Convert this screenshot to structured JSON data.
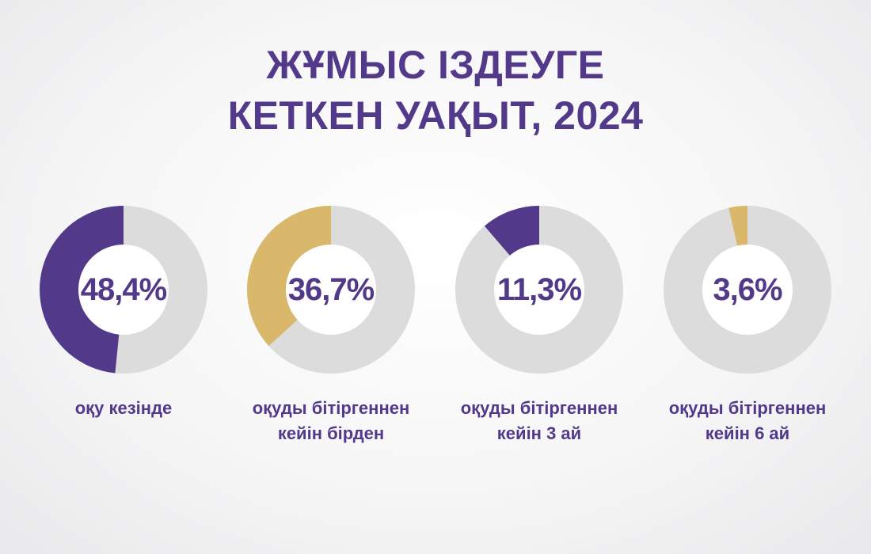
{
  "title": {
    "line1": "ЖҰМЫС ІЗДЕУГЕ",
    "line2": "КЕТКЕН УАҚЫТ, 2024"
  },
  "colors": {
    "title": "#52398a",
    "track": "#dcdcdc",
    "purple": "#52398a",
    "gold": "#d9b86c",
    "center": "#ffffff"
  },
  "chart_data": {
    "type": "pie",
    "title": "ЖҰМЫС ІЗДЕУГЕ КЕТКЕН УАҚЫТ, 2024",
    "items": [
      {
        "label_line1": "оқу кезінде",
        "label_line2": "",
        "value": 48.4,
        "value_label": "48,4%",
        "color": "#52398a"
      },
      {
        "label_line1": "оқуды бітіргеннен",
        "label_line2": "кейін бірден",
        "value": 36.7,
        "value_label": "36,7%",
        "color": "#d9b86c"
      },
      {
        "label_line1": "оқуды бітіргеннен",
        "label_line2": "кейін 3 ай",
        "value": 11.3,
        "value_label": "11,3%",
        "color": "#52398a"
      },
      {
        "label_line1": "оқуды бітіргеннен",
        "label_line2": "кейін 6 ай",
        "value": 3.6,
        "value_label": "3,6%",
        "color": "#d9b86c"
      }
    ]
  }
}
